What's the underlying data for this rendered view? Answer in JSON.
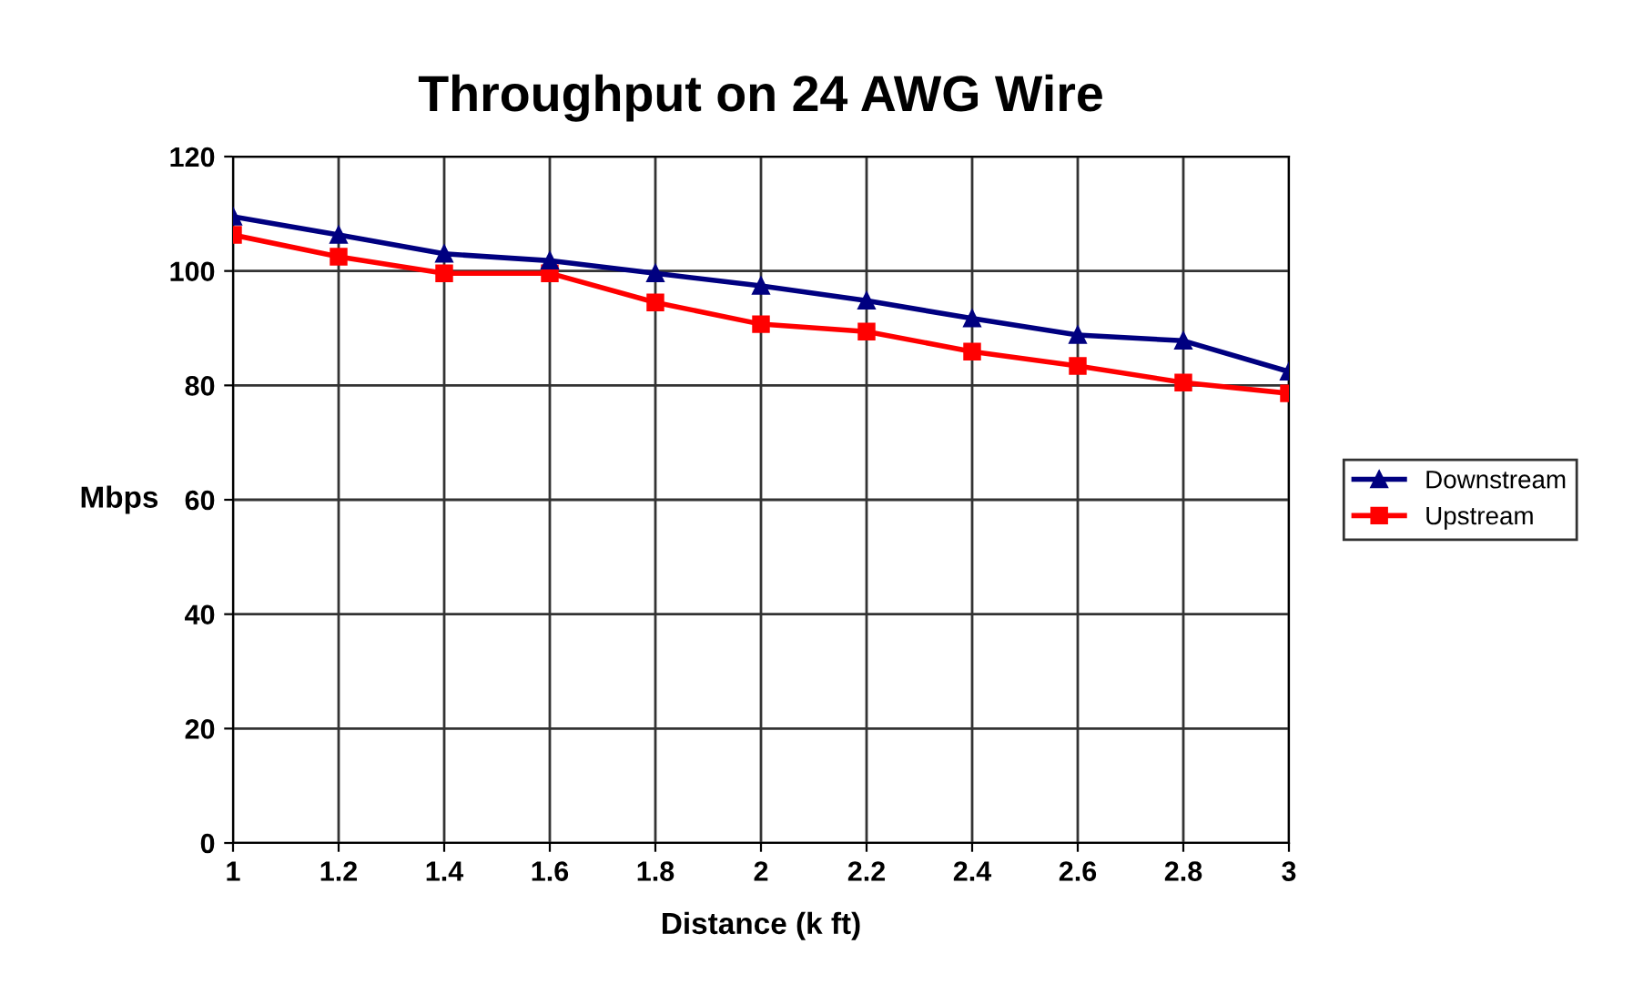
{
  "chart_data": {
    "type": "line",
    "title": "Throughput on 24 AWG Wire",
    "xlabel": "Distance (k ft)",
    "ylabel": "Mbps",
    "x": [
      1,
      1.2,
      1.4,
      1.6,
      1.8,
      2,
      2.2,
      2.4,
      2.6,
      2.8,
      3
    ],
    "series": [
      {
        "name": "Downstream",
        "color": "#000080",
        "marker": "triangle",
        "values": [
          109.5,
          106.3,
          103,
          101.8,
          99.6,
          97.4,
          94.8,
          91.7,
          88.8,
          87.8,
          82.4
        ]
      },
      {
        "name": "Upstream",
        "color": "#ff0000",
        "marker": "square",
        "values": [
          106.3,
          102.5,
          99.6,
          99.6,
          94.5,
          90.7,
          89.4,
          85.9,
          83.4,
          80.5,
          78.6
        ]
      }
    ],
    "xlim": [
      1,
      3
    ],
    "xticks": [
      1,
      1.2,
      1.4,
      1.6,
      1.8,
      2,
      2.2,
      2.4,
      2.6,
      2.8,
      3
    ],
    "ylim": [
      0,
      120
    ],
    "yticks": [
      0,
      20,
      40,
      60,
      80,
      100,
      120
    ],
    "grid": true,
    "legend": "right",
    "line_style": "solid"
  }
}
